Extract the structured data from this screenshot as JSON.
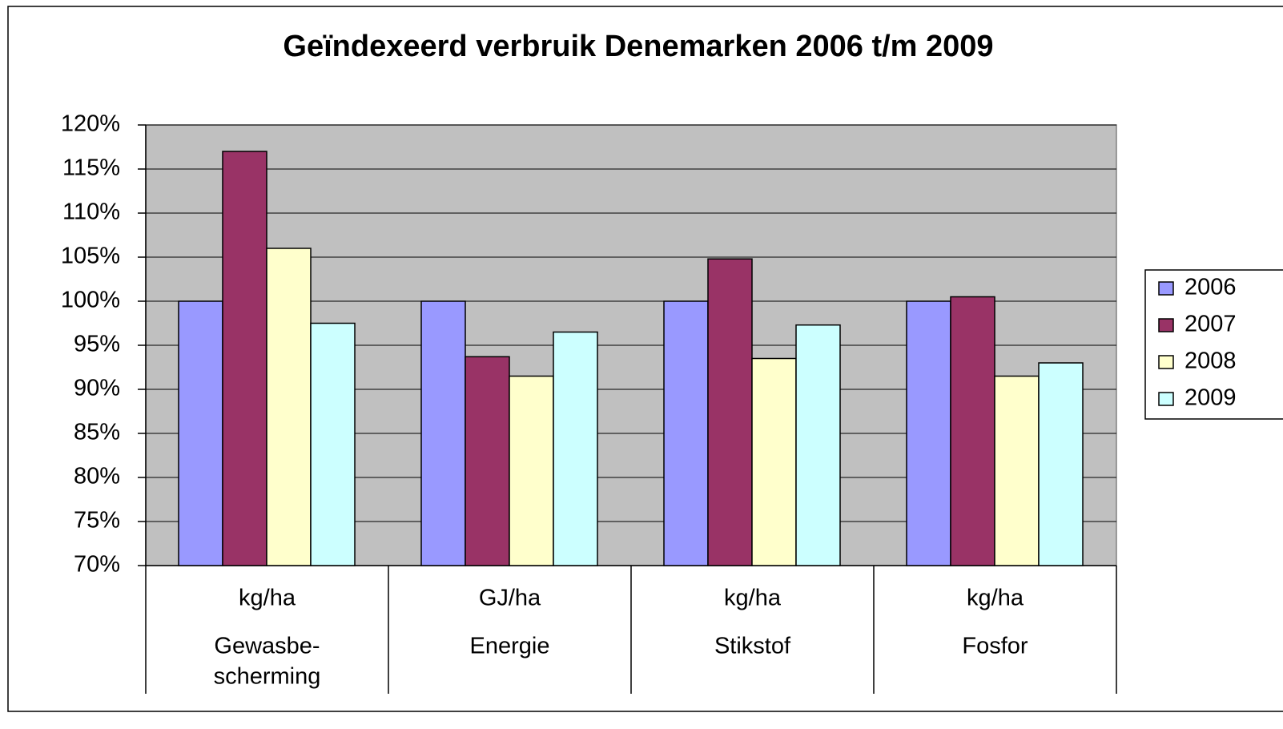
{
  "chart_data": {
    "type": "bar",
    "title": "Geïndexeerd verbruik Denemarken 2006 t/m 2009",
    "categories": [
      [
        "kg/ha",
        "Gewasbe-",
        "scherming"
      ],
      [
        "GJ/ha",
        "Energie"
      ],
      [
        "kg/ha",
        "Stikstof"
      ],
      [
        "kg/ha",
        "Fosfor"
      ]
    ],
    "series": [
      {
        "name": "2006",
        "color": "#9999ff",
        "values": [
          100,
          100,
          100,
          100
        ]
      },
      {
        "name": "2007",
        "color": "#993366",
        "values": [
          117,
          93.7,
          104.8,
          100.5
        ]
      },
      {
        "name": "2008",
        "color": "#ffffcc",
        "values": [
          106,
          91.5,
          93.5,
          91.5
        ]
      },
      {
        "name": "2009",
        "color": "#ccffff",
        "values": [
          97.5,
          96.5,
          97.3,
          93
        ]
      }
    ],
    "ylim": [
      70,
      120
    ],
    "yticks": [
      {
        "value": 70,
        "label": "70%"
      },
      {
        "value": 75,
        "label": "75%"
      },
      {
        "value": 80,
        "label": "80%"
      },
      {
        "value": 85,
        "label": "85%"
      },
      {
        "value": 90,
        "label": "90%"
      },
      {
        "value": 95,
        "label": "95%"
      },
      {
        "value": 100,
        "label": "100%"
      },
      {
        "value": 105,
        "label": "105%"
      },
      {
        "value": 110,
        "label": "110%"
      },
      {
        "value": 115,
        "label": "115%"
      },
      {
        "value": 120,
        "label": "120%"
      }
    ],
    "grid": true,
    "legend": "right"
  }
}
